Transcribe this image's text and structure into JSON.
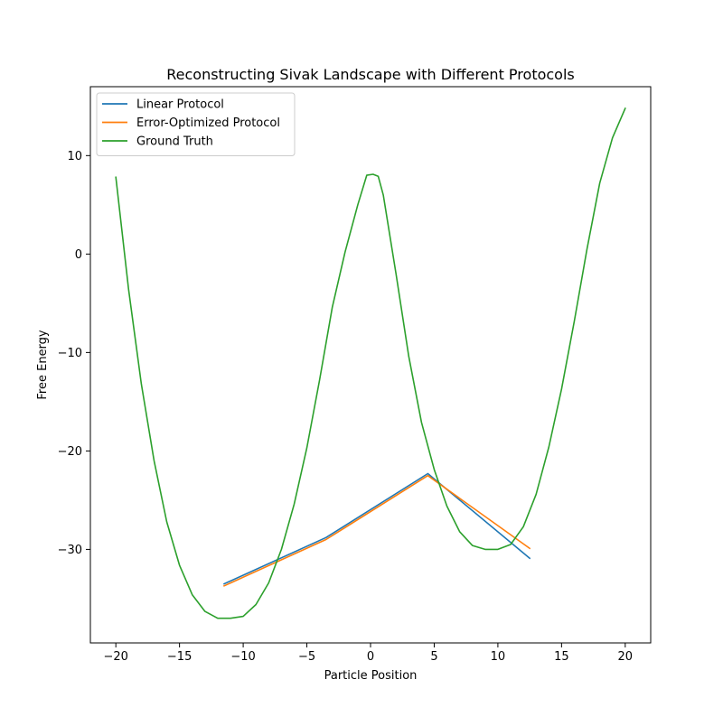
{
  "chart_data": {
    "type": "line",
    "title": "Reconstructing Sivak Landscape with Different Protocols",
    "xlabel": "Particle Position",
    "ylabel": "Free Energy",
    "xlim": [
      -22,
      22
    ],
    "ylim": [
      -39.5,
      17
    ],
    "xticks": [
      -20,
      -15,
      -10,
      -5,
      0,
      5,
      10,
      15,
      20
    ],
    "yticks": [
      -30,
      -20,
      -10,
      0,
      10
    ],
    "grid": false,
    "legend": "top-left",
    "series": [
      {
        "name": "Linear Protocol",
        "color": "#1f77b4",
        "x": [
          -11.5,
          -3.5,
          4.5,
          12.5
        ],
        "y": [
          -33.5,
          -28.8,
          -22.3,
          -30.9
        ]
      },
      {
        "name": "Error-Optimized Protocol",
        "color": "#ff7f0e",
        "x": [
          -11.5,
          -3.5,
          4.5,
          12.5
        ],
        "y": [
          -33.7,
          -29.0,
          -22.5,
          -29.9
        ]
      },
      {
        "name": "Ground Truth",
        "color": "#2ca02c",
        "x": [
          -20,
          -19,
          -18,
          -17,
          -16,
          -15,
          -14,
          -13,
          -12,
          -11,
          -10,
          -9,
          -8,
          -7,
          -6,
          -5,
          -4,
          -3,
          -2,
          -1,
          -0.3,
          0.2,
          0.6,
          1,
          2,
          3,
          4,
          5,
          6,
          7,
          8,
          9,
          10,
          11,
          12,
          13,
          14,
          15,
          16,
          17,
          18,
          19,
          20
        ],
        "y": [
          7.8,
          -3.6,
          -13.2,
          -21.0,
          -27.2,
          -31.6,
          -34.6,
          -36.3,
          -37.0,
          -37.0,
          -36.8,
          -35.6,
          -33.4,
          -30.0,
          -25.4,
          -19.7,
          -12.8,
          -5.4,
          0.2,
          5.0,
          8.0,
          8.1,
          7.9,
          6.0,
          -2.0,
          -10.4,
          -17.1,
          -21.9,
          -25.6,
          -28.2,
          -29.6,
          -30.0,
          -30.0,
          -29.5,
          -27.7,
          -24.4,
          -19.6,
          -13.7,
          -6.8,
          0.5,
          7.2,
          11.8,
          14.8
        ]
      }
    ]
  }
}
